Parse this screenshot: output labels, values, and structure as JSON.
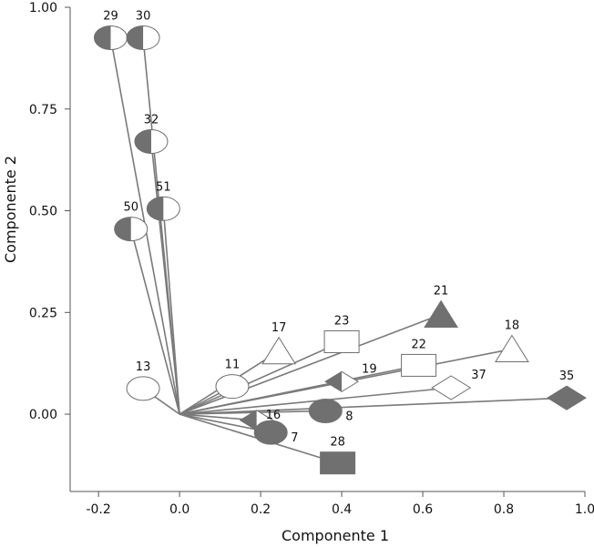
{
  "chart_data": {
    "type": "scatter",
    "title": "",
    "xlabel": "Componente 1",
    "ylabel": "Componente 2",
    "xlim": [
      -0.27,
      1.0
    ],
    "ylim": [
      -0.19,
      1.0
    ],
    "xticks": [
      -0.2,
      0.0,
      0.2,
      0.4,
      0.6,
      0.8,
      1.0
    ],
    "xtick_labels": [
      "-0.2",
      "0.0",
      "0.2",
      "0.4",
      "0.6",
      "0.8",
      "1.0"
    ],
    "yticks": [
      0.0,
      0.25,
      0.5,
      0.75,
      1.0
    ],
    "ytick_labels": [
      "0.00",
      "0.25",
      "0.50",
      "0.75",
      "1.00"
    ],
    "grid": false,
    "vector_origin": [
      0,
      0
    ],
    "points": [
      {
        "label": "29",
        "x": -0.17,
        "y": 0.925,
        "shape": "half-circle"
      },
      {
        "label": "30",
        "x": -0.09,
        "y": 0.925,
        "shape": "half-circle"
      },
      {
        "label": "32",
        "x": -0.07,
        "y": 0.67,
        "shape": "half-circle"
      },
      {
        "label": "51",
        "x": -0.04,
        "y": 0.505,
        "shape": "half-circle"
      },
      {
        "label": "50",
        "x": -0.12,
        "y": 0.455,
        "shape": "half-circle"
      },
      {
        "label": "13",
        "x": -0.09,
        "y": 0.063,
        "shape": "circle-open"
      },
      {
        "label": "11",
        "x": 0.13,
        "y": 0.068,
        "shape": "circle-open"
      },
      {
        "label": "17",
        "x": 0.245,
        "y": 0.155,
        "shape": "triangle-open"
      },
      {
        "label": "23",
        "x": 0.4,
        "y": 0.178,
        "shape": "square-open"
      },
      {
        "label": "21",
        "x": 0.645,
        "y": 0.245,
        "shape": "triangle-filled"
      },
      {
        "label": "18",
        "x": 0.82,
        "y": 0.16,
        "shape": "triangle-open"
      },
      {
        "label": "22",
        "x": 0.59,
        "y": 0.12,
        "shape": "square-open"
      },
      {
        "label": "19",
        "x": 0.4,
        "y": 0.08,
        "shape": "diamond-half"
      },
      {
        "label": "37",
        "x": 0.67,
        "y": 0.065,
        "shape": "diamond-open"
      },
      {
        "label": "35",
        "x": 0.955,
        "y": 0.04,
        "shape": "diamond-filled"
      },
      {
        "label": "8",
        "x": 0.36,
        "y": 0.008,
        "shape": "circle-filled"
      },
      {
        "label": "16",
        "x": 0.19,
        "y": -0.015,
        "shape": "diamond-half"
      },
      {
        "label": "7",
        "x": 0.225,
        "y": -0.045,
        "shape": "circle-filled"
      },
      {
        "label": "28",
        "x": 0.39,
        "y": -0.12,
        "shape": "square-filled"
      }
    ]
  }
}
